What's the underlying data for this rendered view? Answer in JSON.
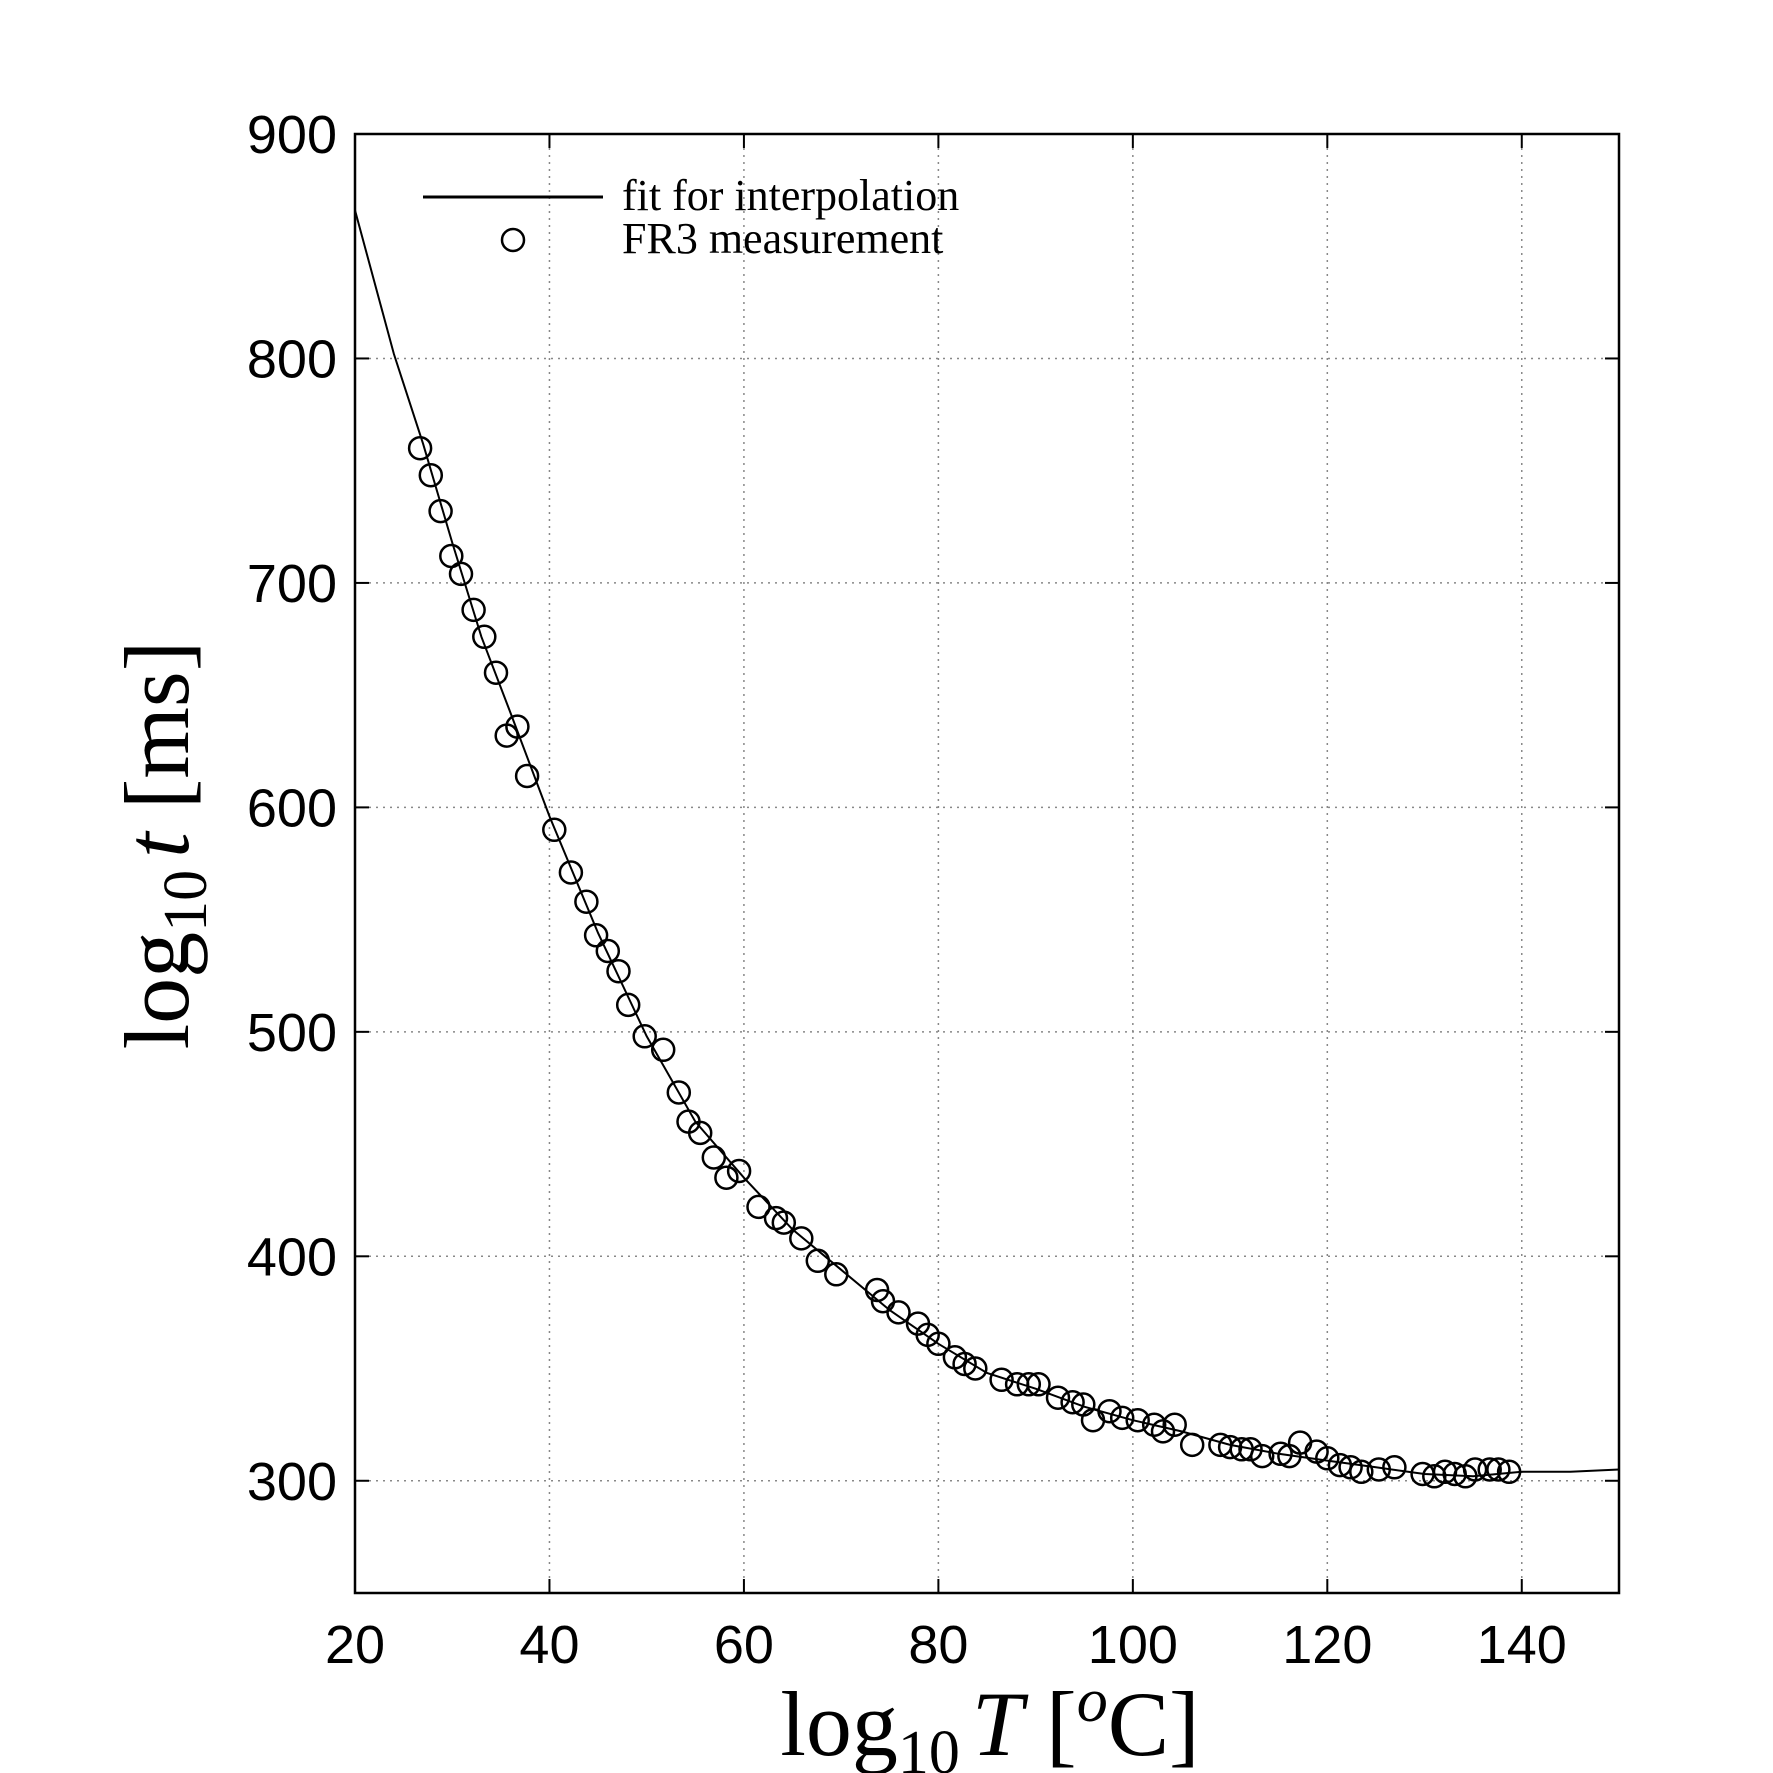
{
  "chart_data": {
    "type": "scatter",
    "xlim": [
      20,
      150
    ],
    "ylim": [
      250,
      900
    ],
    "x_ticks": [
      20,
      40,
      60,
      80,
      100,
      120,
      140
    ],
    "y_ticks": [
      300,
      400,
      500,
      600,
      700,
      800,
      900
    ],
    "grid": true,
    "legend_position": "top-left",
    "xlabel": {
      "prefix": "log",
      "sub": "10",
      "var": "T",
      "open": " [",
      "sup": "o",
      "unit": "C]"
    },
    "ylabel": {
      "prefix": "log",
      "sub": "10",
      "var": "t",
      "unit": " [ms]"
    },
    "series": [
      {
        "name": "fit for interpolation",
        "kind": "line",
        "x": [
          20,
          24,
          27,
          30,
          33,
          36,
          40,
          45,
          50,
          55,
          60,
          65,
          70,
          75,
          80,
          85,
          90,
          95,
          100,
          105,
          110,
          115,
          120,
          125,
          130,
          135,
          140,
          145,
          150
        ],
        "y": [
          866,
          802,
          762,
          718,
          676,
          642,
          596,
          544,
          498,
          460,
          435,
          412,
          394,
          376,
          361,
          348,
          341,
          333,
          327,
          322,
          316,
          312,
          309,
          306,
          303,
          302,
          304,
          304,
          305
        ]
      },
      {
        "name": "FR3 measurement",
        "kind": "marker",
        "x": [
          26.7,
          27.8,
          28.8,
          29.9,
          30.9,
          32.2,
          33.3,
          34.5,
          35.6,
          36.7,
          37.7,
          40.5,
          42.2,
          43.8,
          44.8,
          46.0,
          47.1,
          48.1,
          49.8,
          51.7,
          53.3,
          54.3,
          55.5,
          56.9,
          58.2,
          59.5,
          61.5,
          63.3,
          64.1,
          65.9,
          67.6,
          69.5,
          73.7,
          74.3,
          75.9,
          77.9,
          78.9,
          80.0,
          81.7,
          82.7,
          83.8,
          86.5,
          88.1,
          89.3,
          90.3,
          92.3,
          93.8,
          94.9,
          95.9,
          97.6,
          98.9,
          100.5,
          102.2,
          103.1,
          104.3,
          106.1,
          109.0,
          110.0,
          111.2,
          112.1,
          113.3,
          115.2,
          116.1,
          117.2,
          118.9,
          120.0,
          121.3,
          122.4,
          123.5,
          125.3,
          126.9,
          129.8,
          131.0,
          132.1,
          133.1,
          134.2,
          135.2,
          136.7,
          137.6,
          138.7
        ],
        "y": [
          760,
          748,
          732,
          712,
          704,
          688,
          676,
          660,
          632,
          636,
          614,
          590,
          571,
          558,
          543,
          536,
          527,
          512,
          498,
          492,
          473,
          460,
          455,
          444,
          435,
          438,
          422,
          417,
          415,
          408,
          398,
          392,
          385,
          380,
          375,
          370,
          365,
          361,
          355,
          352,
          350,
          345,
          343,
          343,
          343,
          337,
          335,
          334,
          327,
          331,
          328,
          327,
          325,
          322,
          325,
          316,
          316,
          315,
          314,
          314,
          311,
          312,
          311,
          317,
          313,
          310,
          307,
          306,
          304,
          305,
          306,
          303,
          302,
          304,
          303,
          302,
          305,
          305,
          305,
          304
        ]
      }
    ]
  }
}
